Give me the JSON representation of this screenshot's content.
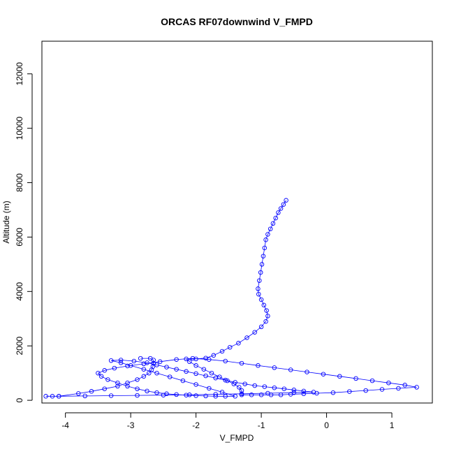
{
  "chart_data": {
    "type": "scatter",
    "title": "ORCAS RF07downwind V_FMPD",
    "xlabel": "V_FMPD",
    "ylabel": "Altitude (m)",
    "xlim": [
      -4.36,
      1.62
    ],
    "ylim": [
      -100,
      13200
    ],
    "xticks": [
      -4,
      -3,
      -2,
      -1,
      0,
      1
    ],
    "yticks": [
      0,
      2000,
      4000,
      6000,
      8000,
      10000,
      12000
    ],
    "marker": "open-circle",
    "connect_points": true,
    "color": "#0000ff",
    "grid": false,
    "series": [
      {
        "points": [
          [
            -0.62,
            7350
          ],
          [
            -0.66,
            7200
          ],
          [
            -0.7,
            7050
          ],
          [
            -0.74,
            6900
          ],
          [
            -0.78,
            6700
          ],
          [
            -0.82,
            6500
          ],
          [
            -0.86,
            6300
          ],
          [
            -0.9,
            6100
          ],
          [
            -0.93,
            5900
          ],
          [
            -0.95,
            5600
          ],
          [
            -0.97,
            5300
          ],
          [
            -0.99,
            5000
          ],
          [
            -1.01,
            4700
          ],
          [
            -1.03,
            4400
          ],
          [
            -1.05,
            4100
          ],
          [
            -1.04,
            3900
          ],
          [
            -1.0,
            3700
          ],
          [
            -0.96,
            3500
          ],
          [
            -0.92,
            3300
          ],
          [
            -0.9,
            3100
          ],
          [
            -0.93,
            2900
          ],
          [
            -1.0,
            2700
          ],
          [
            -1.1,
            2500
          ],
          [
            -1.22,
            2300
          ],
          [
            -1.35,
            2100
          ],
          [
            -1.48,
            1950
          ],
          [
            -1.6,
            1800
          ],
          [
            -1.73,
            1650
          ],
          [
            -1.85,
            1550
          ],
          [
            -2.0,
            1520
          ],
          [
            -2.15,
            1520
          ],
          [
            -2.1,
            1420
          ],
          [
            -2.0,
            1280
          ],
          [
            -1.88,
            1140
          ],
          [
            -1.76,
            1000
          ],
          [
            -1.64,
            860
          ],
          [
            -1.52,
            720
          ],
          [
            -1.42,
            600
          ],
          [
            -1.34,
            480
          ],
          [
            -1.3,
            360
          ],
          [
            -1.3,
            200
          ],
          [
            -1.15,
            200
          ],
          [
            -1.0,
            200
          ],
          [
            -0.85,
            200
          ],
          [
            -0.7,
            200
          ],
          [
            -0.55,
            220
          ],
          [
            -0.35,
            240
          ],
          [
            -0.15,
            260
          ],
          [
            0.1,
            280
          ],
          [
            0.35,
            320
          ],
          [
            0.6,
            360
          ],
          [
            0.85,
            400
          ],
          [
            1.1,
            440
          ],
          [
            1.38,
            480
          ],
          [
            1.2,
            560
          ],
          [
            0.95,
            640
          ],
          [
            0.7,
            720
          ],
          [
            0.45,
            800
          ],
          [
            0.2,
            880
          ],
          [
            -0.05,
            960
          ],
          [
            -0.3,
            1040
          ],
          [
            -0.55,
            1120
          ],
          [
            -0.8,
            1200
          ],
          [
            -1.05,
            1280
          ],
          [
            -1.3,
            1360
          ],
          [
            -1.55,
            1440
          ],
          [
            -1.8,
            1500
          ],
          [
            -2.05,
            1540
          ],
          [
            -2.3,
            1500
          ],
          [
            -2.55,
            1420
          ],
          [
            -2.8,
            1340
          ],
          [
            -3.05,
            1260
          ],
          [
            -3.25,
            1180
          ],
          [
            -3.4,
            1100
          ],
          [
            -3.5,
            1000
          ],
          [
            -3.45,
            880
          ],
          [
            -3.35,
            760
          ],
          [
            -3.2,
            640
          ],
          [
            -3.05,
            520
          ],
          [
            -2.9,
            420
          ],
          [
            -2.75,
            340
          ],
          [
            -2.6,
            280
          ],
          [
            -2.45,
            240
          ],
          [
            -2.3,
            210
          ],
          [
            -2.15,
            190
          ],
          [
            -2.0,
            170
          ],
          [
            -1.85,
            160
          ],
          [
            -1.7,
            150
          ],
          [
            -1.55,
            150
          ],
          [
            -1.4,
            150
          ],
          [
            -1.6,
            300
          ],
          [
            -1.8,
            440
          ],
          [
            -2.0,
            580
          ],
          [
            -2.2,
            720
          ],
          [
            -2.4,
            860
          ],
          [
            -2.6,
            1000
          ],
          [
            -2.8,
            1140
          ],
          [
            -3.0,
            1280
          ],
          [
            -3.15,
            1380
          ],
          [
            -3.3,
            1460
          ],
          [
            -3.15,
            1480
          ],
          [
            -2.95,
            1440
          ],
          [
            -2.75,
            1380
          ],
          [
            -2.6,
            1300
          ],
          [
            -2.45,
            1220
          ],
          [
            -2.3,
            1140
          ],
          [
            -2.15,
            1060
          ],
          [
            -2.0,
            980
          ],
          [
            -1.85,
            900
          ],
          [
            -1.7,
            820
          ],
          [
            -1.55,
            740
          ],
          [
            -1.4,
            660
          ],
          [
            -1.25,
            600
          ],
          [
            -1.1,
            540
          ],
          [
            -0.95,
            500
          ],
          [
            -0.8,
            460
          ],
          [
            -0.65,
            420
          ],
          [
            -0.5,
            380
          ],
          [
            -0.35,
            340
          ],
          [
            -0.2,
            300
          ],
          [
            -0.5,
            280
          ],
          [
            -0.9,
            260
          ],
          [
            -1.3,
            240
          ],
          [
            -1.7,
            220
          ],
          [
            -2.1,
            200
          ],
          [
            -2.5,
            190
          ],
          [
            -2.9,
            180
          ],
          [
            -3.3,
            170
          ],
          [
            -3.7,
            160
          ],
          [
            -4.1,
            150
          ],
          [
            -4.3,
            150
          ],
          [
            -4.2,
            150
          ],
          [
            -4.1,
            150
          ],
          [
            -3.8,
            250
          ],
          [
            -3.6,
            330
          ],
          [
            -3.4,
            420
          ],
          [
            -3.2,
            520
          ],
          [
            -3.05,
            640
          ],
          [
            -2.9,
            760
          ],
          [
            -2.8,
            880
          ],
          [
            -2.72,
            1000
          ],
          [
            -2.68,
            1120
          ],
          [
            -2.66,
            1240
          ],
          [
            -2.65,
            1360
          ],
          [
            -2.65,
            1480
          ],
          [
            -2.7,
            1540
          ],
          [
            -2.85,
            1540
          ]
        ]
      }
    ]
  }
}
